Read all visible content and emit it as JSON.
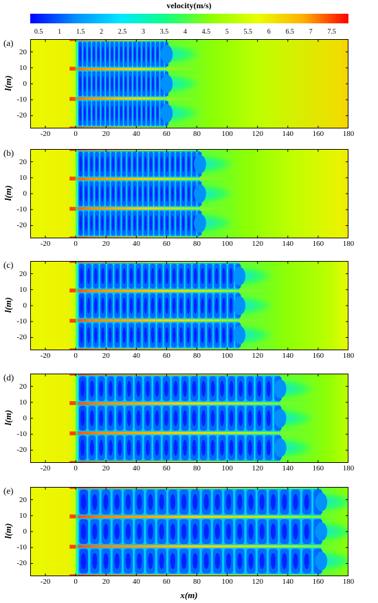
{
  "colorbar": {
    "title": "velocity(m/s)",
    "ticks": [
      "0.5",
      "1",
      "1.5",
      "2",
      "2.5",
      "3",
      "3.5",
      "4",
      "4.5",
      "5",
      "5.5",
      "6",
      "6.5",
      "7",
      "7.5"
    ],
    "vmin": 0.3,
    "vmax": 7.9,
    "colors": [
      "#0000ff",
      "#0090ff",
      "#00e8ff",
      "#10ff80",
      "#90ff00",
      "#e8ff00",
      "#ffb000",
      "#ff0000"
    ]
  },
  "chart_data": [
    {
      "type": "heatmap",
      "label": "(a)",
      "xlim": [
        -30,
        180
      ],
      "ylim": [
        -28,
        28
      ],
      "x_ticks": [
        "-20",
        "0",
        "20",
        "40",
        "60",
        "80",
        "100",
        "120",
        "140",
        "160",
        "180"
      ],
      "y_ticks": [
        "20",
        "10",
        "0",
        "-10",
        "-20"
      ],
      "ylabel": "l(m)",
      "xlabel": "",
      "array_length_m": 60,
      "cell_count": 20,
      "rows_y_center": [
        18.5,
        0,
        -18.5
      ],
      "free_stream_velocity": 6.2
    },
    {
      "type": "heatmap",
      "label": "(b)",
      "xlim": [
        -30,
        180
      ],
      "ylim": [
        -28,
        28
      ],
      "x_ticks": [
        "-20",
        "0",
        "20",
        "40",
        "60",
        "80",
        "100",
        "120",
        "140",
        "160",
        "180"
      ],
      "y_ticks": [
        "20",
        "10",
        "0",
        "-10",
        "-20"
      ],
      "ylabel": "l(m)",
      "xlabel": "",
      "array_length_m": 82,
      "cell_count": 23,
      "rows_y_center": [
        18.5,
        0,
        -18.5
      ],
      "free_stream_velocity": 5.9
    },
    {
      "type": "heatmap",
      "label": "(c)",
      "xlim": [
        -30,
        180
      ],
      "ylim": [
        -28,
        28
      ],
      "x_ticks": [
        "-20",
        "0",
        "20",
        "40",
        "60",
        "80",
        "100",
        "120",
        "140",
        "160",
        "180"
      ],
      "y_ticks": [
        "20",
        "10",
        "0",
        "-10",
        "-20"
      ],
      "ylabel": "l(m)",
      "xlabel": "",
      "array_length_m": 108,
      "cell_count": 23,
      "rows_y_center": [
        18.5,
        0,
        -18.5
      ],
      "free_stream_velocity": 5.8
    },
    {
      "type": "heatmap",
      "label": "(d)",
      "xlim": [
        -30,
        180
      ],
      "ylim": [
        -28,
        28
      ],
      "x_ticks": [
        "-20",
        "0",
        "20",
        "40",
        "60",
        "80",
        "100",
        "120",
        "140",
        "160",
        "180"
      ],
      "y_ticks": [
        "20",
        "10",
        "0",
        "-10",
        "-20"
      ],
      "ylabel": "l(m)",
      "xlabel": "",
      "array_length_m": 135,
      "cell_count": 22,
      "rows_y_center": [
        18.5,
        0,
        -18.5
      ],
      "free_stream_velocity": 5.6
    },
    {
      "type": "heatmap",
      "label": "(e)",
      "xlim": [
        -30,
        180
      ],
      "ylim": [
        -28,
        28
      ],
      "x_ticks": [
        "-20",
        "0",
        "20",
        "40",
        "60",
        "80",
        "100",
        "120",
        "140",
        "160",
        "180"
      ],
      "y_ticks": [
        "20",
        "10",
        "0",
        "-10",
        "-20"
      ],
      "ylabel": "l(m)",
      "xlabel": "x(m)",
      "array_length_m": 162,
      "cell_count": 22,
      "rows_y_center": [
        18.5,
        0,
        -18.5
      ],
      "free_stream_velocity": 5.5
    }
  ]
}
